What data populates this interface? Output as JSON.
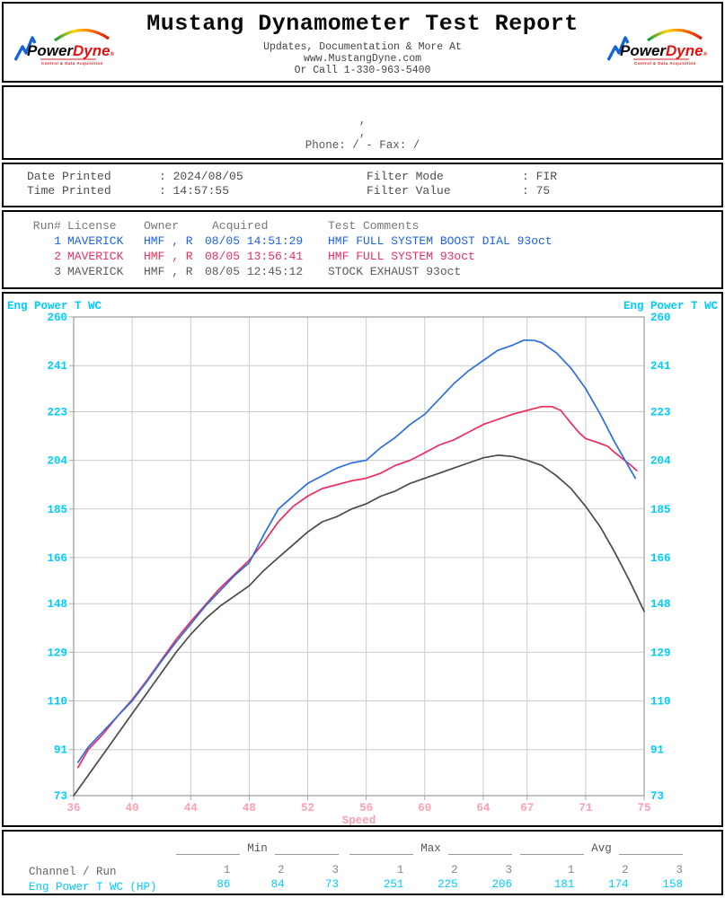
{
  "header": {
    "title": "Mustang Dynamometer Test Report",
    "subtitle_lines": [
      "Updates, Documentation & More At",
      "www.MustangDyne.com",
      "Or Call 1-330-963-5400"
    ],
    "logo": {
      "power": "Power",
      "dyne": "Dyne",
      "reg": "®",
      "tagline": "Control & Data Acquisition"
    }
  },
  "customer": {
    "line1": ",",
    "line2": ",",
    "line3": "Phone:  /  - Fax:  /"
  },
  "print_info": {
    "separator": ":",
    "fields": [
      {
        "label": "Date Printed",
        "value": "2024/08/05",
        "col": "left"
      },
      {
        "label": "Time Printed",
        "value": "14:57:55",
        "col": "left"
      },
      {
        "label": "Filter Mode",
        "value": "FIR",
        "col": "right"
      },
      {
        "label": "Filter Value",
        "value": "75",
        "col": "right"
      }
    ]
  },
  "runs": {
    "headers": {
      "run": "Run#",
      "license": "License",
      "owner": "Owner",
      "acquired": "Acquired",
      "comments": "Test Comments"
    },
    "rows": [
      {
        "run": "1",
        "license": "MAVERICK",
        "owner": "HMF , R",
        "acquired": "08/05 14:51:29",
        "comments": "HMF FULL SYSTEM BOOST DIAL 93oct",
        "color": "#1e63e9"
      },
      {
        "run": "2",
        "license": "MAVERICK",
        "owner": "HMF , R",
        "acquired": "08/05 13:56:41",
        "comments": "HMF FULL SYSTEM 93oct",
        "color": "#ee2d5c"
      },
      {
        "run": "3",
        "license": "MAVERICK",
        "owner": "HMF , R",
        "acquired": "08/05 12:45:12",
        "comments": "STOCK EXHAUST 93oct",
        "color": "#5a5a5a"
      }
    ]
  },
  "chart_data": {
    "type": "line",
    "ylabel_left": "Eng Power T WC",
    "ylabel_right": "Eng Power T WC",
    "xlabel": "Speed",
    "xlim": [
      36,
      75
    ],
    "ylim": [
      73,
      260
    ],
    "x_ticks": [
      36,
      40,
      44,
      48,
      52,
      56,
      60,
      64,
      67,
      71,
      75
    ],
    "y_ticks": [
      260,
      241,
      223,
      204,
      185,
      166,
      148,
      129,
      110,
      91,
      73
    ],
    "grid": true,
    "colors": {
      "axis_label": "#00ccff",
      "x_tick": "#ff9fb0",
      "grid": "#cccccc",
      "frame": "#999999",
      "tick_stub": "#aaaaaa"
    },
    "series": [
      {
        "name": "Run 3 - STOCK EXHAUST 93oct",
        "color": "#4a4a4a",
        "points": [
          [
            36,
            73
          ],
          [
            37,
            81
          ],
          [
            38,
            89
          ],
          [
            39,
            97
          ],
          [
            40,
            105
          ],
          [
            41,
            113
          ],
          [
            42,
            121
          ],
          [
            43,
            129
          ],
          [
            44,
            136
          ],
          [
            45,
            142
          ],
          [
            46,
            147
          ],
          [
            47,
            151
          ],
          [
            48,
            155
          ],
          [
            49,
            161
          ],
          [
            50,
            166
          ],
          [
            51,
            171
          ],
          [
            52,
            176
          ],
          [
            53,
            180
          ],
          [
            54,
            182
          ],
          [
            55,
            185
          ],
          [
            56,
            187
          ],
          [
            57,
            190
          ],
          [
            58,
            192
          ],
          [
            59,
            195
          ],
          [
            60,
            197
          ],
          [
            61,
            199
          ],
          [
            62,
            201
          ],
          [
            63,
            203
          ],
          [
            64,
            205
          ],
          [
            65,
            206
          ],
          [
            66,
            205.5
          ],
          [
            67,
            204
          ],
          [
            68,
            202
          ],
          [
            69,
            198
          ],
          [
            70,
            193
          ],
          [
            71,
            186
          ],
          [
            72,
            178
          ],
          [
            73,
            168
          ],
          [
            74,
            157
          ],
          [
            75,
            145
          ]
        ]
      },
      {
        "name": "Run 2 - HMF FULL SYSTEM 93oct",
        "color": "#ee2d5c",
        "points": [
          [
            36.3,
            84
          ],
          [
            37,
            91
          ],
          [
            38,
            97
          ],
          [
            39,
            104
          ],
          [
            40,
            110.5
          ],
          [
            41,
            118
          ],
          [
            42,
            126
          ],
          [
            43,
            134
          ],
          [
            44,
            141
          ],
          [
            45,
            147.5
          ],
          [
            46,
            154
          ],
          [
            47,
            159.5
          ],
          [
            48,
            165
          ],
          [
            49,
            172
          ],
          [
            50,
            180
          ],
          [
            51,
            186
          ],
          [
            52,
            190
          ],
          [
            53,
            193
          ],
          [
            54,
            194.5
          ],
          [
            55,
            196
          ],
          [
            56,
            197
          ],
          [
            57,
            199
          ],
          [
            58,
            202
          ],
          [
            59,
            204
          ],
          [
            60,
            207
          ],
          [
            61,
            210
          ],
          [
            62,
            212
          ],
          [
            63,
            215
          ],
          [
            64,
            218
          ],
          [
            65,
            220
          ],
          [
            66,
            222
          ],
          [
            67,
            223.5
          ],
          [
            68,
            225
          ],
          [
            68.7,
            225
          ],
          [
            69.3,
            223.5
          ],
          [
            70,
            218.5
          ],
          [
            70.6,
            214.5
          ],
          [
            71,
            212.5
          ],
          [
            71.8,
            211
          ],
          [
            72.5,
            209.5
          ],
          [
            73,
            207
          ],
          [
            74,
            202.5
          ],
          [
            74.5,
            200
          ]
        ]
      },
      {
        "name": "Run 1 - HMF FULL SYSTEM BOOST DIAL 93oct",
        "color": "#2b6fe0",
        "points": [
          [
            36.3,
            86
          ],
          [
            37,
            92
          ],
          [
            38,
            98
          ],
          [
            39,
            104
          ],
          [
            40,
            110
          ],
          [
            41,
            117.5
          ],
          [
            42,
            125.5
          ],
          [
            43,
            133
          ],
          [
            44,
            140
          ],
          [
            45,
            147
          ],
          [
            46,
            153
          ],
          [
            47,
            159
          ],
          [
            48,
            164
          ],
          [
            49,
            175
          ],
          [
            50,
            185
          ],
          [
            51,
            190
          ],
          [
            52,
            195
          ],
          [
            53,
            198
          ],
          [
            54,
            201
          ],
          [
            55,
            203
          ],
          [
            56,
            204
          ],
          [
            57,
            209
          ],
          [
            58,
            213
          ],
          [
            59,
            218
          ],
          [
            60,
            222
          ],
          [
            61,
            228
          ],
          [
            62,
            234
          ],
          [
            63,
            239
          ],
          [
            64,
            243
          ],
          [
            65,
            247
          ],
          [
            66,
            249
          ],
          [
            66.8,
            251
          ],
          [
            67.5,
            250.8
          ],
          [
            68,
            250
          ],
          [
            69,
            246
          ],
          [
            70,
            240
          ],
          [
            71,
            232
          ],
          [
            72,
            222
          ],
          [
            73,
            211
          ],
          [
            74,
            201
          ],
          [
            74.4,
            197
          ]
        ]
      }
    ]
  },
  "stats": {
    "groups": [
      "Min",
      "Max",
      "Avg"
    ],
    "channel_header": "Channel / Run",
    "run_numbers": [
      "1",
      "2",
      "3"
    ],
    "row": {
      "channel": "Eng Power T WC (HP)",
      "channel_color": "#00ccff",
      "min": [
        86,
        84,
        73
      ],
      "max": [
        251,
        225,
        206
      ],
      "avg": [
        181,
        174,
        158
      ]
    }
  }
}
